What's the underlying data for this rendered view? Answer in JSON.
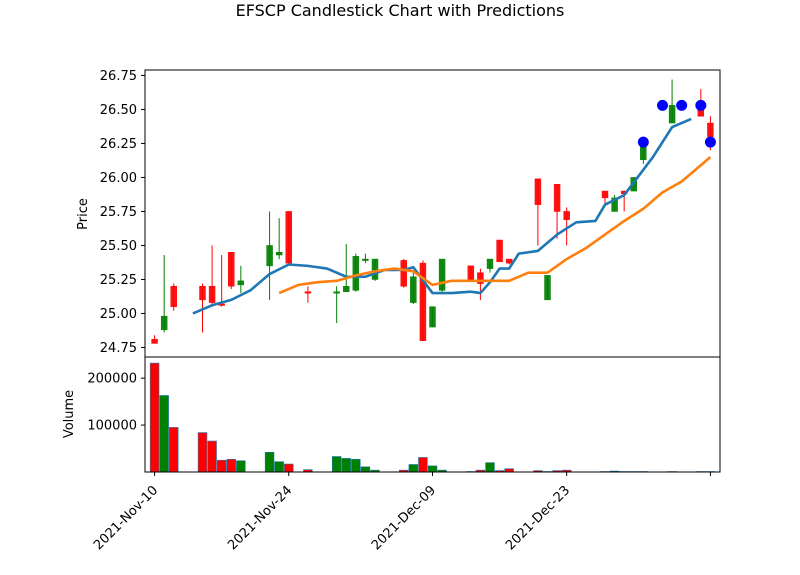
{
  "chart_data": {
    "type": "candlestick",
    "title": "EFSCP Candlestick Chart with Predictions",
    "ylabel_price": "Price",
    "ylabel_volume": "Volume",
    "price_ylim": [
      24.68,
      26.79
    ],
    "price_yticks": [
      24.75,
      25.0,
      25.25,
      25.5,
      25.75,
      26.0,
      26.25,
      26.5,
      26.75
    ],
    "price_ytick_labels": [
      "24.75",
      "25.00",
      "25.25",
      "25.50",
      "25.75",
      "26.00",
      "26.25",
      "26.50",
      "26.75"
    ],
    "volume_ylim": [
      0,
      245000
    ],
    "volume_yticks": [
      100000,
      200000
    ],
    "volume_ytick_labels": [
      "100000",
      "200000"
    ],
    "xlim": [
      "2021-11-09",
      "2022-01-08"
    ],
    "xticks": [
      "2021-11-10",
      "2021-11-24",
      "2021-12-09",
      "2021-12-23",
      "2022-01-07"
    ],
    "xtick_labels": [
      "2021-Nov-10",
      "2021-Nov-24",
      "2021-Dec-09",
      "2021-Dec-23",
      ""
    ],
    "colors": {
      "up": "#008000",
      "down": "#ff0000",
      "ma_short": "#1f77b4",
      "ma_long": "#ff7f0e",
      "prediction": "#0000ff"
    },
    "candles": [
      {
        "date": "2021-11-10",
        "open": 24.81,
        "high": 24.84,
        "low": 24.78,
        "close": 24.78,
        "volume": 232000
      },
      {
        "date": "2021-11-11",
        "open": 24.88,
        "high": 25.43,
        "low": 24.86,
        "close": 24.98,
        "volume": 163000
      },
      {
        "date": "2021-11-12",
        "open": 25.2,
        "high": 25.22,
        "low": 25.02,
        "close": 25.05,
        "volume": 95000
      },
      {
        "date": "2021-11-15",
        "open": 25.2,
        "high": 25.22,
        "low": 24.86,
        "close": 25.1,
        "volume": 84000
      },
      {
        "date": "2021-11-16",
        "open": 25.2,
        "high": 25.5,
        "low": 25.05,
        "close": 25.08,
        "volume": 66000
      },
      {
        "date": "2021-11-17",
        "open": 25.07,
        "high": 25.43,
        "low": 25.05,
        "close": 25.06,
        "volume": 25000
      },
      {
        "date": "2021-11-18",
        "open": 25.45,
        "high": 25.45,
        "low": 25.18,
        "close": 25.2,
        "volume": 27000
      },
      {
        "date": "2021-11-19",
        "open": 25.21,
        "high": 25.35,
        "low": 25.15,
        "close": 25.24,
        "volume": 24000
      },
      {
        "date": "2021-11-22",
        "open": 25.35,
        "high": 25.75,
        "low": 25.1,
        "close": 25.5,
        "volume": 42000
      },
      {
        "date": "2021-11-23",
        "open": 25.43,
        "high": 25.7,
        "low": 25.4,
        "close": 25.45,
        "volume": 22000
      },
      {
        "date": "2021-11-24",
        "open": 25.75,
        "high": 25.75,
        "low": 25.35,
        "close": 25.37,
        "volume": 17000
      },
      {
        "date": "2021-11-26",
        "open": 25.16,
        "high": 25.2,
        "low": 25.08,
        "close": 25.15,
        "volume": 5000
      },
      {
        "date": "2021-11-29",
        "open": 25.15,
        "high": 25.2,
        "low": 24.93,
        "close": 25.16,
        "volume": 33000
      },
      {
        "date": "2021-11-30",
        "open": 25.16,
        "high": 25.51,
        "low": 25.16,
        "close": 25.2,
        "volume": 29000
      },
      {
        "date": "2021-12-01",
        "open": 25.17,
        "high": 25.44,
        "low": 25.16,
        "close": 25.42,
        "volume": 27000
      },
      {
        "date": "2021-12-02",
        "open": 25.39,
        "high": 25.44,
        "low": 25.37,
        "close": 25.4,
        "volume": 11000
      },
      {
        "date": "2021-12-03",
        "open": 25.25,
        "high": 25.4,
        "low": 25.24,
        "close": 25.4,
        "volume": 4000
      },
      {
        "date": "2021-12-06",
        "open": 25.39,
        "high": 25.4,
        "low": 25.19,
        "close": 25.2,
        "volume": 4000
      },
      {
        "date": "2021-12-07",
        "open": 25.08,
        "high": 25.3,
        "low": 25.07,
        "close": 25.27,
        "volume": 16000
      },
      {
        "date": "2021-12-08",
        "open": 25.37,
        "high": 25.39,
        "low": 24.8,
        "close": 24.8,
        "volume": 31000
      },
      {
        "date": "2021-12-09",
        "open": 24.9,
        "high": 25.05,
        "low": 24.9,
        "close": 25.05,
        "volume": 13000
      },
      {
        "date": "2021-12-10",
        "open": 25.17,
        "high": 25.4,
        "low": 25.15,
        "close": 25.4,
        "volume": 4000
      },
      {
        "date": "2021-12-13",
        "open": 25.35,
        "high": 25.35,
        "low": 25.25,
        "close": 25.25,
        "volume": 1000
      },
      {
        "date": "2021-12-14",
        "open": 25.3,
        "high": 25.33,
        "low": 25.1,
        "close": 25.22,
        "volume": 4000
      },
      {
        "date": "2021-12-15",
        "open": 25.33,
        "high": 25.4,
        "low": 25.3,
        "close": 25.4,
        "volume": 20000
      },
      {
        "date": "2021-12-16",
        "open": 25.54,
        "high": 25.54,
        "low": 25.38,
        "close": 25.38,
        "volume": 3000
      },
      {
        "date": "2021-12-17",
        "open": 25.4,
        "high": 25.4,
        "low": 25.36,
        "close": 25.37,
        "volume": 7000
      },
      {
        "date": "2021-12-20",
        "open": 25.99,
        "high": 25.99,
        "low": 25.5,
        "close": 25.8,
        "volume": 3000
      },
      {
        "date": "2021-12-21",
        "open": 25.1,
        "high": 25.28,
        "low": 25.1,
        "close": 25.28,
        "volume": 1000
      },
      {
        "date": "2021-12-22",
        "open": 25.95,
        "high": 25.95,
        "low": 25.55,
        "close": 25.75,
        "volume": 3000
      },
      {
        "date": "2021-12-23",
        "open": 25.75,
        "high": 25.78,
        "low": 25.5,
        "close": 25.69,
        "volume": 4000
      },
      {
        "date": "2021-12-27",
        "open": 25.9,
        "high": 25.9,
        "low": 25.8,
        "close": 25.85,
        "volume": 1000
      },
      {
        "date": "2021-12-28",
        "open": 25.75,
        "high": 25.87,
        "low": 25.75,
        "close": 25.85,
        "volume": 2000
      },
      {
        "date": "2021-12-29",
        "open": 25.9,
        "high": 25.9,
        "low": 25.75,
        "close": 25.88,
        "volume": 1000
      },
      {
        "date": "2021-12-30",
        "open": 25.9,
        "high": 26.0,
        "low": 25.9,
        "close": 26.0,
        "volume": 1000
      },
      {
        "date": "2021-12-31",
        "open": 26.13,
        "high": 26.3,
        "low": 26.1,
        "close": 26.27,
        "volume": 1000
      },
      {
        "date": "2022-01-03",
        "open": 26.4,
        "high": 26.72,
        "low": 26.4,
        "close": 26.53,
        "volume": 1000
      },
      {
        "date": "2022-01-06",
        "open": 26.53,
        "high": 26.65,
        "low": 26.45,
        "close": 26.45,
        "volume": 1000
      },
      {
        "date": "2022-01-07",
        "open": 26.4,
        "high": 26.45,
        "low": 26.2,
        "close": 26.3,
        "volume": 1000
      }
    ],
    "ma_short": [
      [
        "2021-11-14",
        25.0
      ],
      [
        "2021-11-16",
        25.06
      ],
      [
        "2021-11-18",
        25.1
      ],
      [
        "2021-11-20",
        25.17
      ],
      [
        "2021-11-22",
        25.29
      ],
      [
        "2021-11-24",
        25.36
      ],
      [
        "2021-11-26",
        25.35
      ],
      [
        "2021-11-28",
        25.33
      ],
      [
        "2021-11-30",
        25.27
      ],
      [
        "2021-12-02",
        25.27
      ],
      [
        "2021-12-04",
        25.32
      ],
      [
        "2021-12-06",
        25.32
      ],
      [
        "2021-12-07",
        25.34
      ],
      [
        "2021-12-09",
        25.15
      ],
      [
        "2021-12-11",
        25.15
      ],
      [
        "2021-12-13",
        25.16
      ],
      [
        "2021-12-14",
        25.15
      ],
      [
        "2021-12-15",
        25.23
      ],
      [
        "2021-12-16",
        25.33
      ],
      [
        "2021-12-17",
        25.33
      ],
      [
        "2021-12-18",
        25.44
      ],
      [
        "2021-12-20",
        25.46
      ],
      [
        "2021-12-22",
        25.58
      ],
      [
        "2021-12-24",
        25.67
      ],
      [
        "2021-12-26",
        25.68
      ],
      [
        "2021-12-27",
        25.8
      ],
      [
        "2021-12-29",
        25.87
      ],
      [
        "2022-01-01",
        26.15
      ],
      [
        "2022-01-03",
        26.37
      ],
      [
        "2022-01-05",
        26.43
      ]
    ],
    "ma_long": [
      [
        "2021-11-23",
        25.15
      ],
      [
        "2021-11-25",
        25.21
      ],
      [
        "2021-11-27",
        25.23
      ],
      [
        "2021-11-29",
        25.24
      ],
      [
        "2021-12-01",
        25.28
      ],
      [
        "2021-12-03",
        25.31
      ],
      [
        "2021-12-05",
        25.33
      ],
      [
        "2021-12-07",
        25.31
      ],
      [
        "2021-12-09",
        25.21
      ],
      [
        "2021-12-11",
        25.24
      ],
      [
        "2021-12-13",
        25.24
      ],
      [
        "2021-12-15",
        25.24
      ],
      [
        "2021-12-17",
        25.24
      ],
      [
        "2021-12-19",
        25.3
      ],
      [
        "2021-12-21",
        25.3
      ],
      [
        "2021-12-23",
        25.4
      ],
      [
        "2021-12-25",
        25.48
      ],
      [
        "2021-12-27",
        25.58
      ],
      [
        "2021-12-29",
        25.68
      ],
      [
        "2021-12-31",
        25.77
      ],
      [
        "2022-01-02",
        25.89
      ],
      [
        "2022-01-04",
        25.97
      ],
      [
        "2022-01-06",
        26.09
      ],
      [
        "2022-01-07",
        26.15
      ]
    ],
    "predictions": [
      {
        "date": "2021-12-31",
        "value": 26.26
      },
      {
        "date": "2022-01-02",
        "value": 26.53
      },
      {
        "date": "2022-01-04",
        "value": 26.53
      },
      {
        "date": "2022-01-06",
        "value": 26.53
      },
      {
        "date": "2022-01-07",
        "value": 26.26
      }
    ]
  }
}
